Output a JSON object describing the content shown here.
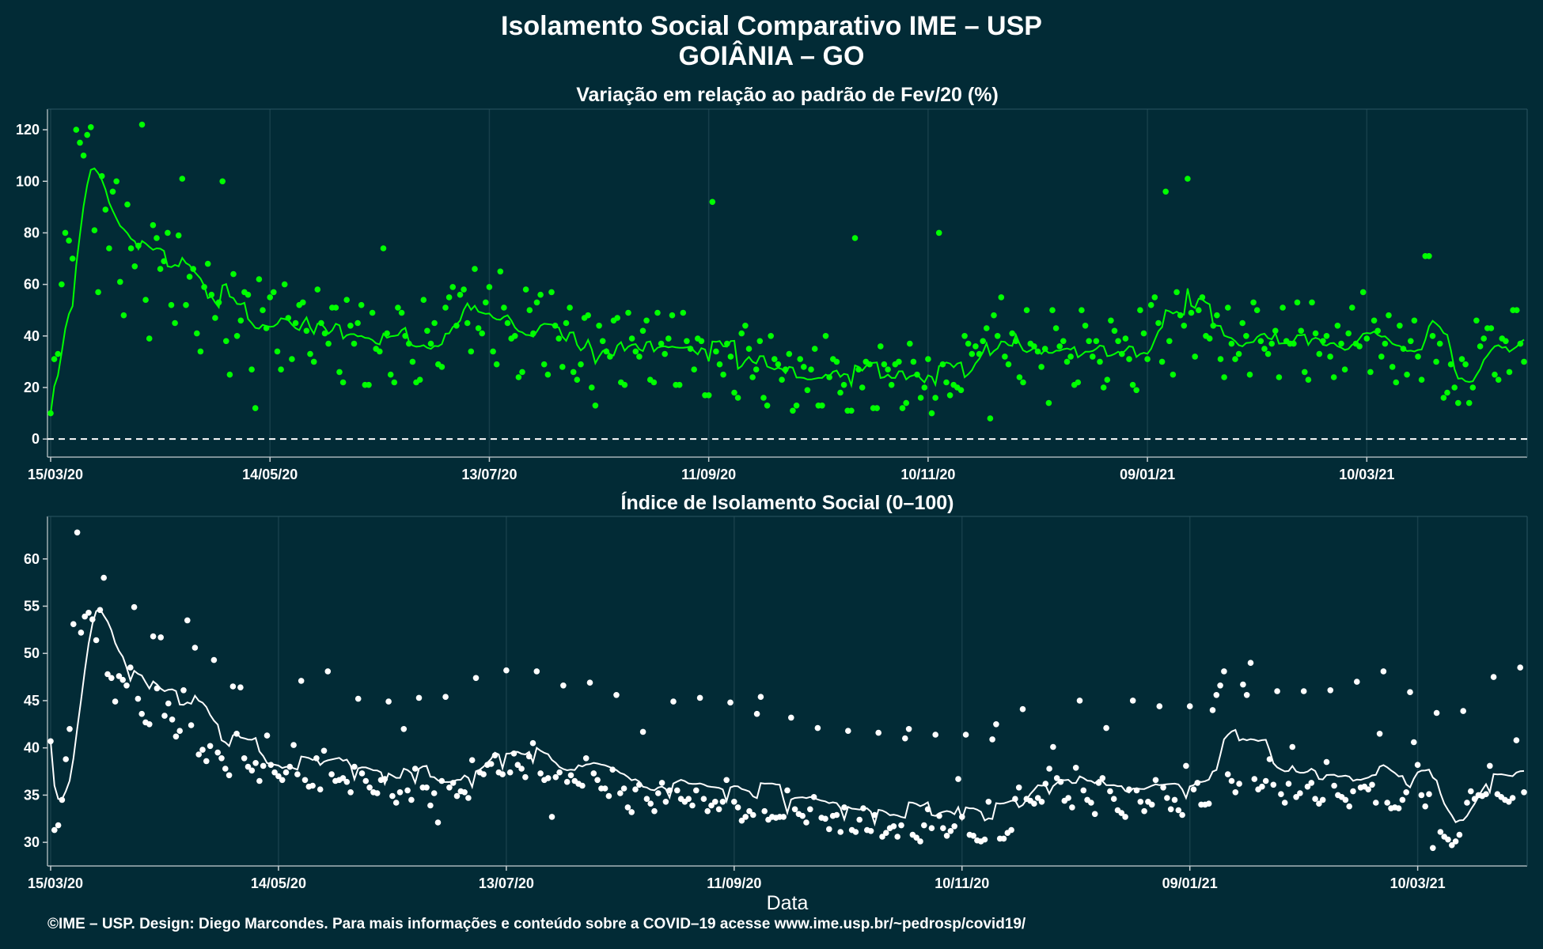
{
  "header": {
    "title_line1": "Isolamento Social Comparativo IME – USP",
    "title_line2": "GOIÂNIA – GO"
  },
  "footer": {
    "credit": "©IME – USP. Design: Diego Marcondes. Para mais informações e conteúdo sobre a COVID–19 acesse www.ime.usp.br/~pedrosp/covid19/"
  },
  "colors": {
    "background": "#022b36",
    "panel1_series": "#00ff00",
    "panel2_series": "#ffffff",
    "axis": "#c8d0d3"
  },
  "chart_data": [
    {
      "type": "scatter",
      "title": "Variação em relação ao padrão de Fev/20 (%)",
      "xlabel": "",
      "ylabel": "",
      "x_ticks": [
        "15/03/20",
        "14/05/20",
        "13/07/20",
        "11/09/20",
        "10/11/20",
        "09/01/21",
        "10/03/21"
      ],
      "ylim": [
        -7,
        128
      ],
      "y_ticks": [
        0,
        20,
        40,
        60,
        80,
        100,
        120
      ],
      "reference_line": 0,
      "grid": true,
      "series": [
        {
          "values": [
            10,
            31,
            33,
            60,
            80,
            77,
            70,
            120,
            115,
            110,
            118,
            121,
            81,
            57,
            102,
            89,
            74,
            96,
            100,
            61,
            48,
            91,
            74,
            67,
            75,
            122,
            54,
            39,
            83,
            78,
            66,
            69,
            80,
            52,
            45,
            79,
            101,
            52,
            63,
            66,
            41,
            34,
            59,
            68,
            56,
            47,
            53,
            100,
            38,
            25,
            64,
            40,
            46,
            57,
            56,
            27,
            12,
            62,
            50,
            43,
            55,
            57,
            34,
            27,
            60,
            47,
            31,
            45,
            52,
            53,
            42,
            33,
            30,
            58,
            45,
            41,
            37,
            51,
            51,
            26,
            22,
            54,
            44,
            37,
            45,
            52,
            21,
            21,
            49,
            35,
            34,
            74,
            41,
            25,
            22,
            51,
            49,
            40,
            37,
            30,
            22,
            23,
            54,
            42,
            37,
            45,
            29,
            28,
            51,
            55,
            59,
            44,
            56,
            58,
            45,
            34,
            66,
            43,
            41,
            53,
            59,
            34,
            29,
            65,
            51,
            45,
            39,
            40,
            24,
            26,
            58,
            50,
            41,
            53,
            56,
            29,
            25,
            57,
            44,
            39,
            28,
            45,
            51,
            26,
            23,
            29,
            47,
            48,
            20,
            13,
            44,
            38,
            34,
            32,
            46,
            47,
            22,
            21,
            49,
            39,
            34,
            32,
            42,
            46,
            23,
            22,
            49,
            37,
            33,
            39,
            48,
            21,
            21,
            49,
            38,
            35,
            27,
            39,
            38,
            17,
            17,
            92,
            34,
            29,
            25,
            37,
            32,
            18,
            16,
            41,
            44,
            35,
            24,
            27,
            38,
            16,
            13,
            40,
            31,
            29,
            23,
            27,
            33,
            11,
            13,
            31,
            28,
            19,
            27,
            35,
            13,
            13,
            40,
            24,
            31,
            30,
            18,
            21,
            11,
            11,
            78,
            27,
            20,
            30,
            29,
            12,
            12,
            36,
            29,
            27,
            21,
            29,
            30,
            12,
            14,
            37,
            30,
            25,
            16,
            20,
            31,
            10,
            16,
            80,
            29,
            22,
            17,
            21,
            20,
            19,
            40,
            37,
            33,
            36,
            33,
            38,
            43,
            8,
            48,
            40,
            55,
            32,
            29,
            41,
            38,
            24,
            22,
            50,
            37,
            36,
            34,
            28,
            35,
            14,
            50,
            43,
            36,
            38,
            30,
            32,
            21,
            22,
            50,
            44,
            38,
            32,
            38,
            30,
            20,
            23,
            46,
            42,
            38,
            33,
            39,
            31,
            21,
            19,
            50,
            41,
            31,
            52,
            55,
            45,
            30,
            96,
            38,
            25,
            57,
            48,
            44,
            101,
            49,
            32,
            50,
            55,
            40,
            39,
            44,
            48,
            31,
            24,
            51,
            37,
            31,
            33,
            45,
            40,
            25,
            53,
            50,
            38,
            35,
            33,
            37,
            42,
            24,
            51,
            38,
            37,
            37,
            53,
            42,
            26,
            23,
            53,
            41,
            33,
            38,
            40,
            32,
            24,
            44,
            37,
            27,
            41,
            51,
            37,
            36,
            57,
            39,
            26,
            46,
            42,
            32,
            37,
            48,
            28,
            22,
            44,
            35,
            25,
            38,
            46,
            32,
            23,
            71,
            71,
            40,
            30,
            37,
            16,
            18,
            29,
            20,
            14,
            31,
            29,
            14,
            20,
            46,
            36,
            39,
            43,
            43,
            25,
            23,
            39,
            38,
            26,
            50,
            50,
            37,
            30
          ]
        }
      ]
    },
    {
      "type": "scatter",
      "title": "Índice de Isolamento Social (0–100)",
      "xlabel": "Data",
      "ylabel": "",
      "x_ticks": [
        "15/03/20",
        "14/05/20",
        "13/07/20",
        "11/09/20",
        "10/11/20",
        "09/01/21",
        "10/03/21"
      ],
      "ylim": [
        27.5,
        64.5
      ],
      "y_ticks": [
        30,
        35,
        40,
        45,
        50,
        55,
        60
      ],
      "grid": true,
      "series": [
        {
          "values": [
            40.7,
            31.3,
            31.8,
            34.5,
            38.8,
            42.0,
            53.1,
            62.8,
            52.2,
            53.9,
            54.3,
            53.6,
            51.4,
            54.6,
            58.0,
            47.8,
            47.4,
            44.9,
            47.6,
            47.2,
            46.6,
            48.5,
            54.9,
            45.2,
            43.6,
            42.7,
            42.5,
            51.8,
            46.3,
            51.7,
            43.4,
            44.7,
            43.0,
            41.2,
            41.8,
            46.1,
            53.5,
            42.4,
            50.6,
            39.3,
            39.8,
            38.6,
            40.2,
            49.3,
            39.5,
            38.9,
            37.8,
            37.1,
            46.5,
            41.5,
            46.4,
            38.9,
            38.0,
            37.6,
            38.4,
            36.5,
            38.1,
            41.3,
            38.2,
            37.4,
            37.0,
            36.6,
            37.4,
            38.0,
            40.3,
            37.2,
            47.1,
            36.6,
            35.9,
            36.0,
            38.9,
            35.6,
            39.7,
            48.1,
            37.2,
            36.5,
            36.6,
            36.8,
            36.4,
            35.3,
            38.0,
            45.2,
            37.3,
            36.5,
            35.8,
            35.3,
            35.2,
            36.6,
            36.7,
            44.9,
            34.9,
            34.2,
            35.3,
            42.0,
            35.5,
            34.5,
            37.8,
            45.3,
            35.8,
            35.8,
            33.9,
            35.2,
            32.1,
            36.5,
            45.4,
            35.8,
            36.3,
            34.9,
            35.4,
            35.3,
            34.7,
            38.7,
            47.4,
            37.4,
            37.2,
            38.2,
            38.3,
            39.2,
            37.4,
            37.2,
            48.2,
            37.4,
            39.4,
            38.2,
            37.8,
            36.9,
            39.1,
            40.5,
            48.1,
            37.3,
            36.6,
            36.8,
            32.7,
            36.9,
            37.4,
            46.6,
            36.4,
            37.1,
            36.5,
            36.2,
            36.0,
            38.9,
            46.9,
            37.3,
            36.6,
            35.7,
            35.7,
            34.9,
            37.7,
            45.6,
            35.2,
            35.7,
            33.7,
            33.2,
            35.6,
            36.1,
            41.7,
            34.6,
            34.1,
            33.3,
            35.2,
            36.3,
            34.3,
            35.5,
            44.9,
            35.5,
            34.6,
            34.3,
            34.6,
            33.9,
            35.5,
            45.3,
            34.6,
            33.3,
            33.9,
            34.3,
            33.5,
            34.3,
            36.6,
            44.8,
            34.3,
            33.7,
            32.3,
            32.7,
            33.3,
            32.9,
            43.6,
            45.4,
            33.3,
            32.4,
            32.7,
            32.6,
            32.7,
            32.7,
            35.5,
            43.2,
            33.5,
            33.0,
            32.8,
            32.1,
            33.5,
            34.8,
            42.1,
            32.6,
            32.5,
            31.4,
            32.8,
            32.9,
            31.1,
            33.7,
            41.8,
            31.3,
            31.1,
            32.4,
            33.6,
            31.3,
            31.2,
            32.9,
            41.6,
            30.6,
            31.0,
            31.5,
            31.7,
            30.6,
            31.8,
            41.0,
            42.0,
            30.8,
            30.5,
            30.1,
            31.8,
            33.5,
            31.5,
            41.4,
            32.8,
            31.5,
            30.7,
            31.2,
            31.7,
            36.7,
            32.7,
            41.4,
            30.8,
            30.7,
            30.2,
            30.1,
            30.3,
            34.3,
            40.9,
            42.5,
            30.4,
            30.4,
            31.0,
            31.3,
            34.6,
            35.8,
            44.1,
            34.6,
            34.4,
            34.1,
            34.7,
            34.3,
            36.2,
            37.8,
            40.1,
            36.8,
            36.4,
            34.4,
            34.7,
            33.7,
            37.9,
            45.0,
            35.5,
            34.5,
            34.2,
            33.0,
            36.3,
            36.8,
            42.1,
            35.4,
            34.6,
            33.4,
            33.1,
            32.7,
            35.6,
            45.0,
            35.5,
            34.3,
            33.3,
            34.3,
            34.0,
            36.6,
            44.4,
            35.8,
            34.7,
            33.5,
            34.5,
            33.4,
            32.9,
            38.1,
            44.4,
            35.6,
            36.3,
            34.0,
            34.0,
            34.1,
            44.0,
            45.6,
            46.6,
            48.1,
            37.2,
            36.5,
            35.3,
            36.2,
            46.7,
            45.6,
            49.0,
            36.7,
            35.6,
            35.9,
            36.5,
            38.8,
            36.1,
            46.0,
            35.1,
            34.2,
            36.2,
            40.1,
            34.8,
            35.2,
            46.0,
            35.9,
            36.3,
            34.6,
            34.1,
            34.5,
            38.5,
            46.1,
            36.0,
            35.0,
            34.8,
            34.5,
            33.8,
            35.4,
            47.0,
            35.8,
            35.9,
            35.6,
            36.1,
            34.2,
            41.5,
            48.1,
            34.2,
            33.6,
            33.7,
            33.6,
            34.5,
            35.3,
            45.9,
            40.6,
            38.2,
            35.0,
            33.8,
            35.1,
            29.4,
            43.7,
            31.1,
            30.6,
            30.3,
            29.7,
            30.1,
            30.8,
            43.9,
            34.2,
            35.4,
            34.6,
            35.0,
            34.9,
            35.1,
            38.1,
            47.5,
            35.1,
            34.8,
            34.5,
            34.3,
            34.7,
            40.8,
            48.5,
            35.3
          ]
        }
      ]
    }
  ]
}
